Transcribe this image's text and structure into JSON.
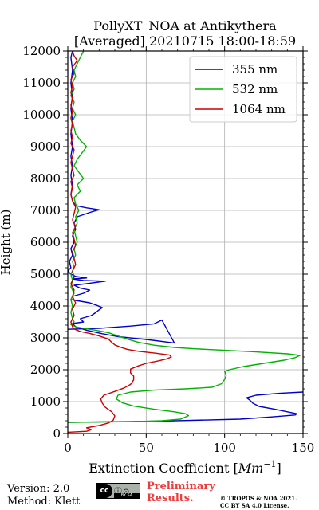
{
  "chart_data": {
    "type": "line",
    "title": "PollyXT_NOA at Antikythera",
    "subtitle": "[Averaged] 20210715 18:00-18:59",
    "xlabel_text": "Extinction Coefficient [",
    "xlabel_unit": "Mm",
    "xlabel_exp": "−1",
    "xlabel_close": "]",
    "ylabel": "Height (m)",
    "xlim": [
      0,
      150
    ],
    "ylim": [
      0,
      12000
    ],
    "x_ticks": [
      "0",
      "50",
      "100",
      "150"
    ],
    "y_ticks": [
      "0",
      "1000",
      "2000",
      "3000",
      "4000",
      "5000",
      "6000",
      "7000",
      "8000",
      "9000",
      "10000",
      "11000",
      "12000"
    ],
    "grid": true,
    "legend_position": "upper right",
    "series": [
      {
        "name": "355 nm",
        "color": "#0000cc",
        "points": [
          [
            0,
            350
          ],
          [
            60,
            390
          ],
          [
            110,
            450
          ],
          [
            130,
            520
          ],
          [
            145,
            580
          ],
          [
            146,
            620
          ],
          [
            140,
            680
          ],
          [
            132,
            760
          ],
          [
            122,
            850
          ],
          [
            118,
            950
          ],
          [
            116,
            1050
          ],
          [
            114,
            1120
          ],
          [
            120,
            1200
          ],
          [
            135,
            1260
          ],
          [
            150,
            1300
          ],
          [
            null,
            null
          ],
          [
            0,
            3270
          ],
          [
            20,
            3300
          ],
          [
            40,
            3370
          ],
          [
            55,
            3440
          ],
          [
            60,
            3560
          ],
          [
            68,
            2840
          ],
          [
            50,
            2950
          ],
          [
            32,
            3040
          ],
          [
            22,
            3130
          ],
          [
            12,
            3240
          ],
          [
            5,
            3350
          ],
          [
            3,
            3450
          ],
          [
            10,
            3500
          ],
          [
            8,
            3600
          ],
          [
            15,
            3700
          ],
          [
            18,
            3800
          ],
          [
            20,
            3880
          ],
          [
            22,
            3950
          ],
          [
            18,
            4030
          ],
          [
            14,
            4100
          ],
          [
            8,
            4150
          ],
          [
            2,
            4200
          ],
          [
            3,
            4300
          ],
          [
            10,
            4400
          ],
          [
            14,
            4500
          ],
          [
            8,
            4560
          ],
          [
            4,
            4650
          ],
          [
            15,
            4720
          ],
          [
            24,
            4780
          ],
          [
            10,
            4800
          ],
          [
            3,
            4850
          ],
          [
            12,
            4880
          ],
          [
            5,
            4930
          ],
          [
            2,
            5000
          ],
          [
            0,
            5100
          ],
          [
            2,
            5200
          ],
          [
            1,
            5400
          ],
          [
            3,
            5600
          ],
          [
            2,
            5800
          ],
          [
            4,
            6000
          ],
          [
            3,
            6200
          ],
          [
            5,
            6400
          ],
          [
            4,
            6600
          ],
          [
            6,
            6800
          ],
          [
            15,
            6950
          ],
          [
            20,
            7020
          ],
          [
            12,
            7080
          ],
          [
            5,
            7150
          ],
          [
            3,
            7300
          ],
          [
            2,
            7500
          ],
          [
            3,
            7800
          ],
          [
            2,
            8100
          ],
          [
            3,
            8400
          ],
          [
            2,
            8700
          ],
          [
            3,
            9000
          ],
          [
            2,
            9400
          ],
          [
            3,
            9800
          ],
          [
            2,
            10200
          ],
          [
            3,
            10600
          ],
          [
            2,
            11000
          ],
          [
            3,
            11400
          ],
          [
            2,
            11800
          ],
          [
            3,
            12000
          ]
        ]
      },
      {
        "name": "532 nm",
        "color": "#00b300",
        "points": [
          [
            0,
            350
          ],
          [
            40,
            370
          ],
          [
            60,
            400
          ],
          [
            72,
            450
          ],
          [
            77,
            560
          ],
          [
            75,
            620
          ],
          [
            68,
            680
          ],
          [
            55,
            760
          ],
          [
            42,
            860
          ],
          [
            35,
            960
          ],
          [
            31,
            1080
          ],
          [
            32,
            1200
          ],
          [
            40,
            1300
          ],
          [
            55,
            1360
          ],
          [
            75,
            1400
          ],
          [
            92,
            1450
          ],
          [
            98,
            1560
          ],
          [
            100,
            1700
          ],
          [
            101,
            1820
          ],
          [
            100,
            1950
          ],
          [
            103,
            2000
          ],
          [
            112,
            2100
          ],
          [
            125,
            2200
          ],
          [
            138,
            2300
          ],
          [
            145,
            2380
          ],
          [
            148,
            2450
          ],
          [
            140,
            2500
          ],
          [
            120,
            2560
          ],
          [
            100,
            2610
          ],
          [
            80,
            2660
          ],
          [
            68,
            2700
          ],
          [
            55,
            2770
          ],
          [
            45,
            2860
          ],
          [
            38,
            2960
          ],
          [
            32,
            3060
          ],
          [
            26,
            3160
          ],
          [
            18,
            3240
          ],
          [
            10,
            3300
          ],
          [
            5,
            3350
          ],
          [
            2,
            3420
          ],
          [
            4,
            3500
          ],
          [
            3,
            3600
          ],
          [
            2,
            3800
          ],
          [
            3,
            4000
          ],
          [
            2,
            4200
          ],
          [
            4,
            4400
          ],
          [
            2,
            4600
          ],
          [
            3,
            4800
          ],
          [
            2,
            5000
          ],
          [
            4,
            5200
          ],
          [
            3,
            5400
          ],
          [
            5,
            5600
          ],
          [
            4,
            5800
          ],
          [
            6,
            6000
          ],
          [
            5,
            6200
          ],
          [
            4,
            6400
          ],
          [
            6,
            6600
          ],
          [
            5,
            6800
          ],
          [
            7,
            7000
          ],
          [
            5,
            7200
          ],
          [
            4,
            7400
          ],
          [
            8,
            7600
          ],
          [
            6,
            7800
          ],
          [
            10,
            8000
          ],
          [
            7,
            8200
          ],
          [
            4,
            8400
          ],
          [
            6,
            8600
          ],
          [
            9,
            8800
          ],
          [
            12,
            9000
          ],
          [
            8,
            9200
          ],
          [
            5,
            9400
          ],
          [
            4,
            9600
          ],
          [
            3,
            9800
          ],
          [
            5,
            10000
          ],
          [
            3,
            10200
          ],
          [
            4,
            10400
          ],
          [
            2,
            10600
          ],
          [
            4,
            10800
          ],
          [
            3,
            11000
          ],
          [
            5,
            11200
          ],
          [
            4,
            11400
          ],
          [
            6,
            11600
          ],
          [
            8,
            11800
          ],
          [
            10,
            12000
          ]
        ]
      },
      {
        "name": "1064 nm",
        "color": "#cc0000",
        "points": [
          [
            0,
            40
          ],
          [
            12,
            70
          ],
          [
            15,
            120
          ],
          [
            12,
            180
          ],
          [
            20,
            250
          ],
          [
            26,
            330
          ],
          [
            29,
            420
          ],
          [
            30,
            550
          ],
          [
            28,
            680
          ],
          [
            24,
            820
          ],
          [
            22,
            950
          ],
          [
            21,
            1080
          ],
          [
            23,
            1200
          ],
          [
            30,
            1320
          ],
          [
            36,
            1430
          ],
          [
            40,
            1540
          ],
          [
            42,
            1680
          ],
          [
            42,
            1800
          ],
          [
            40,
            1900
          ],
          [
            40,
            2020
          ],
          [
            45,
            2120
          ],
          [
            50,
            2200
          ],
          [
            58,
            2280
          ],
          [
            63,
            2340
          ],
          [
            66,
            2400
          ],
          [
            65,
            2460
          ],
          [
            56,
            2520
          ],
          [
            45,
            2580
          ],
          [
            38,
            2640
          ],
          [
            34,
            2700
          ],
          [
            30,
            2780
          ],
          [
            28,
            2860
          ],
          [
            26,
            2960
          ],
          [
            20,
            3060
          ],
          [
            14,
            3140
          ],
          [
            8,
            3200
          ],
          [
            4,
            3280
          ],
          [
            3,
            3350
          ],
          [
            2,
            3500
          ],
          [
            4,
            3700
          ],
          [
            3,
            3900
          ],
          [
            5,
            4100
          ],
          [
            3,
            4300
          ],
          [
            4,
            4500
          ],
          [
            2,
            4700
          ],
          [
            4,
            4900
          ],
          [
            3,
            5100
          ],
          [
            5,
            5300
          ],
          [
            4,
            5500
          ],
          [
            3,
            5700
          ],
          [
            5,
            5900
          ],
          [
            4,
            6100
          ],
          [
            3,
            6300
          ],
          [
            5,
            6500
          ],
          [
            3,
            6700
          ],
          [
            4,
            6900
          ],
          [
            5,
            7100
          ],
          [
            3,
            7300
          ],
          [
            2,
            7500
          ],
          [
            3,
            7700
          ],
          [
            2,
            7900
          ],
          [
            4,
            8100
          ],
          [
            3,
            8300
          ],
          [
            2,
            8500
          ],
          [
            3,
            8700
          ],
          [
            4,
            8900
          ],
          [
            2,
            9100
          ],
          [
            3,
            9300
          ],
          [
            2,
            9500
          ],
          [
            3,
            9700
          ],
          [
            2,
            9900
          ],
          [
            3,
            10100
          ],
          [
            2,
            10300
          ],
          [
            3,
            10500
          ],
          [
            2,
            10700
          ],
          [
            3,
            10900
          ],
          [
            2,
            11100
          ],
          [
            4,
            11300
          ],
          [
            3,
            11500
          ],
          [
            6,
            11700
          ],
          [
            4,
            11850
          ],
          [
            3,
            12000
          ]
        ]
      }
    ]
  },
  "footer": {
    "version": "Version: 2.0",
    "method": "Method: Klett",
    "badge_cc": "cc",
    "badge_icons": "ⓘ⊙",
    "badge_sub": "BY SA",
    "preliminary_line1": "Preliminary",
    "preliminary_line2": "Results.",
    "copyright_line1": "© TROPOS & NOA 2021.",
    "copyright_line2": "CC BY SA 4.0 License."
  }
}
